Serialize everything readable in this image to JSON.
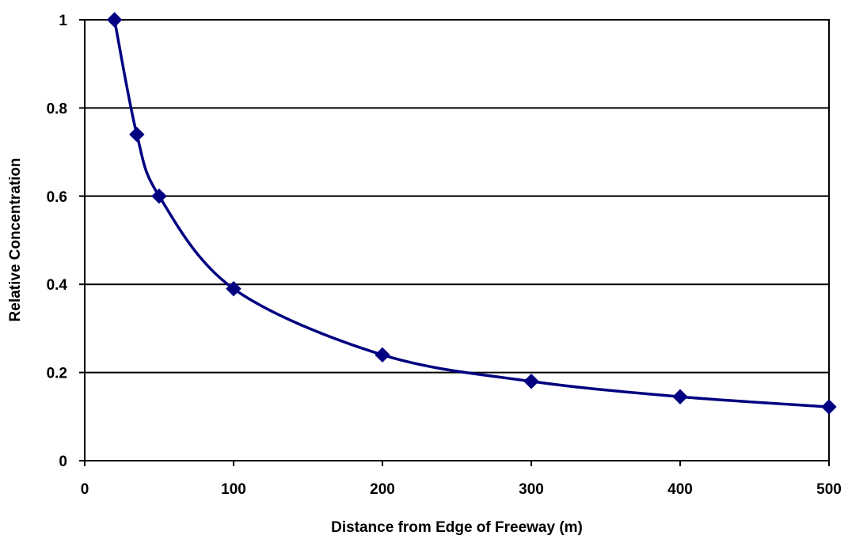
{
  "chart_data": {
    "type": "line",
    "title": "",
    "xlabel": "Distance from Edge of Freeway (m)",
    "ylabel": "Relative Concentration",
    "xlim": [
      0,
      500
    ],
    "ylim": [
      0,
      1
    ],
    "x_ticks": [
      0,
      100,
      200,
      300,
      400,
      500
    ],
    "y_ticks": [
      0,
      0.2,
      0.4,
      0.6,
      0.8,
      1
    ],
    "x_tick_labels": [
      "0",
      "100",
      "200",
      "300",
      "400",
      "500"
    ],
    "y_tick_labels": [
      "0",
      "0.2",
      "0.4",
      "0.6",
      "0.8",
      "1"
    ],
    "grid": "horizontal",
    "legend": "none",
    "series": [
      {
        "x": [
          20,
          35,
          50,
          100,
          200,
          300,
          400,
          500
        ],
        "y": [
          1.0,
          0.74,
          0.6,
          0.39,
          0.24,
          0.18,
          0.145,
          0.122
        ],
        "line_color": "#000080",
        "marker": "diamond",
        "smooth": true
      }
    ]
  }
}
